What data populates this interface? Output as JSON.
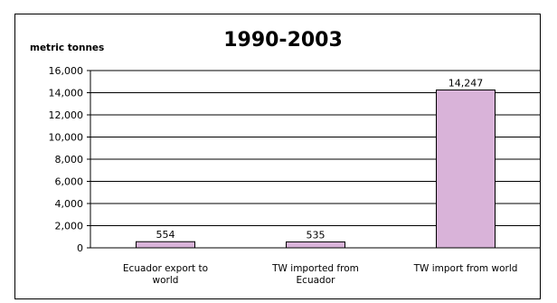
{
  "chart_data": {
    "type": "bar",
    "title": "1990-2003",
    "ylabel": "metric tonnes",
    "xlabel": "",
    "categories": [
      [
        "Ecuador export to",
        "world"
      ],
      [
        "TW imported from",
        "Ecuador"
      ],
      [
        "TW import from world"
      ]
    ],
    "values": [
      554,
      535,
      14247
    ],
    "data_labels": [
      "554",
      "535",
      "14,247"
    ],
    "yticks": [
      "0",
      "2,000",
      "4,000",
      "6,000",
      "8,000",
      "10,000",
      "12,000",
      "14,000",
      "16,000"
    ],
    "ylim": [
      0,
      16000
    ],
    "grid": true,
    "bar_color": "#d9b3d9",
    "bar_edge_color": "#000000"
  }
}
